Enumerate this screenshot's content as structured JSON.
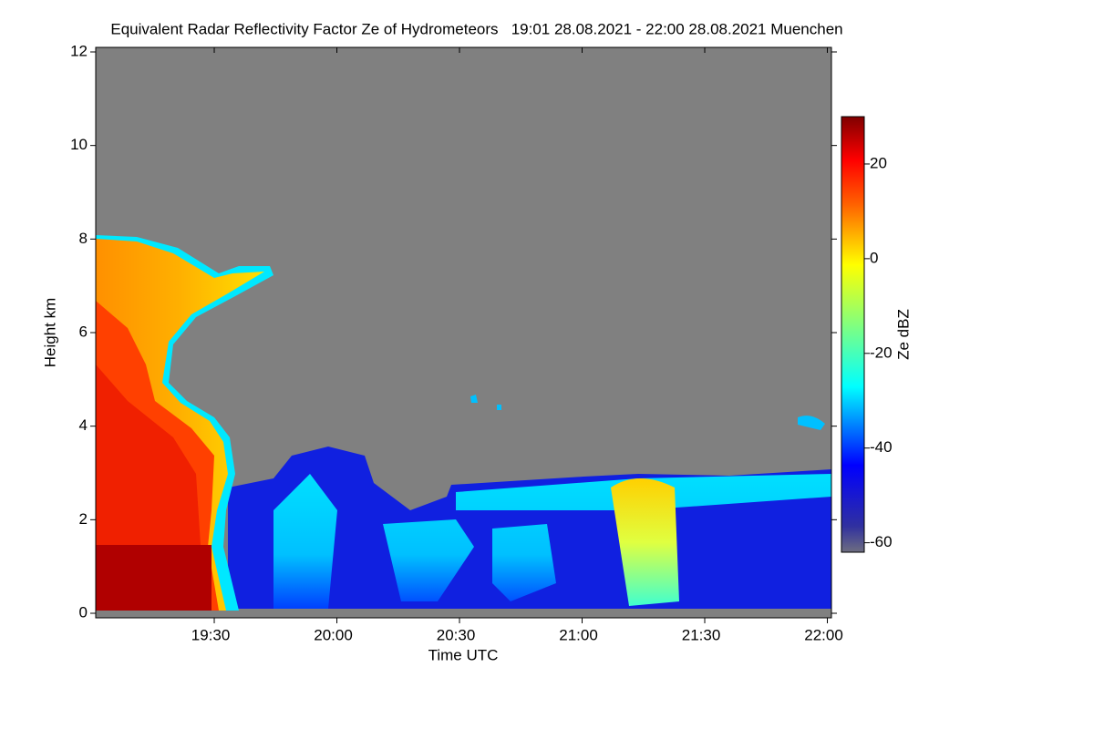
{
  "chart_data": {
    "type": "time-height",
    "title": "Equivalent Radar Reflectivity Factor Ze of Hydrometeors   19:01 28.08.2021 - 22:00 28.08.2021 Muenchen",
    "x_label": "Time UTC",
    "y_label": "Height km",
    "xlim": [
      1141,
      1321
    ],
    "xticks": [
      {
        "value": 1170,
        "label": "19:30"
      },
      {
        "value": 1200,
        "label": "20:00"
      },
      {
        "value": 1230,
        "label": "20:30"
      },
      {
        "value": 1260,
        "label": "21:00"
      },
      {
        "value": 1290,
        "label": "21:30"
      },
      {
        "value": 1320,
        "label": "22:00"
      }
    ],
    "ylim": [
      0,
      12
    ],
    "yticks": [
      0,
      2,
      4,
      6,
      8,
      10,
      12
    ],
    "colorbar": {
      "label": "Ze dBZ",
      "clim": [
        -62,
        30
      ],
      "ticks": [
        -60,
        -40,
        -20,
        0,
        20
      ]
    }
  }
}
